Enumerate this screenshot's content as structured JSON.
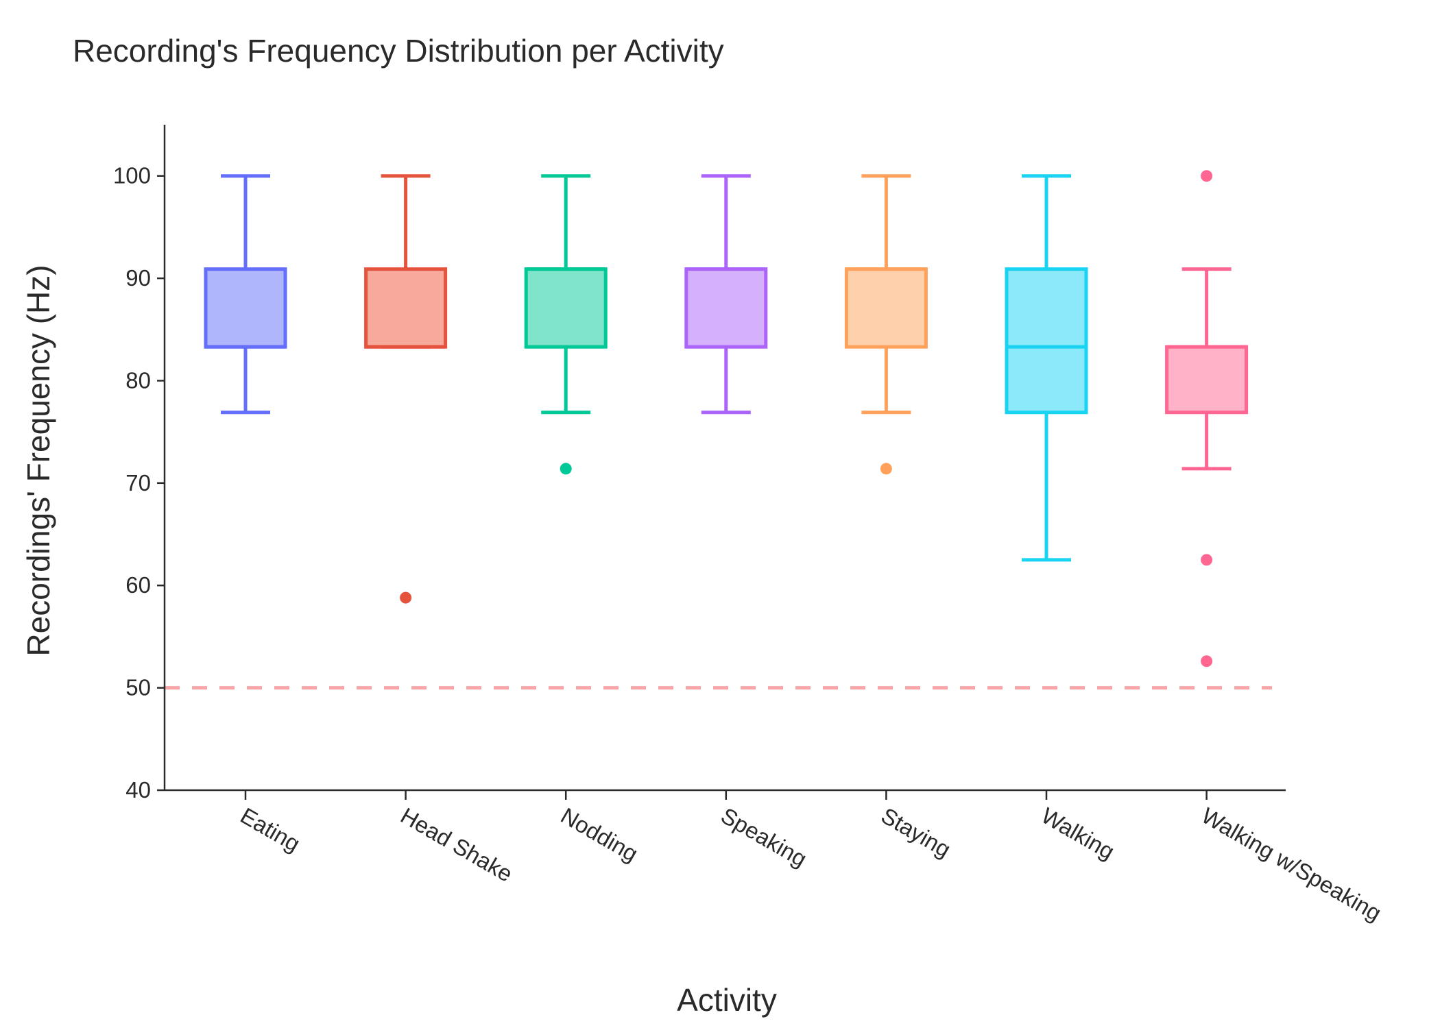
{
  "chart_data": {
    "type": "box",
    "title": "Recording's Frequency Distribution per Activity",
    "xlabel": "Activity",
    "ylabel": "Recordings' Frequency (Hz)",
    "ylim": [
      40,
      105
    ],
    "yticks": [
      40,
      50,
      60,
      70,
      80,
      90,
      100
    ],
    "grid": false,
    "reference_line": {
      "y": 50,
      "style": "dashed",
      "color": "#f8a5a8"
    },
    "categories": [
      "Eating",
      "Head Shake",
      "Nodding",
      "Speaking",
      "Staying",
      "Walking",
      "Walking w/Speaking"
    ],
    "boxes": [
      {
        "name": "Eating",
        "color": "#636efa",
        "fill": "#b0b6fc",
        "whisker_low": 76.9,
        "q1": 83.3,
        "median": 83.3,
        "q3": 90.9,
        "whisker_high": 100,
        "outliers": []
      },
      {
        "name": "Head Shake",
        "color": "#e5533d",
        "fill": "#f7aa9c",
        "whisker_low": 83.3,
        "q1": 83.3,
        "median": 83.3,
        "q3": 90.9,
        "whisker_high": 100,
        "outliers": [
          58.8
        ]
      },
      {
        "name": "Nodding",
        "color": "#00c896",
        "fill": "#7fe4ca",
        "whisker_low": 76.9,
        "q1": 83.3,
        "median": 90.9,
        "q3": 90.9,
        "whisker_high": 100,
        "outliers": [
          71.4
        ]
      },
      {
        "name": "Speaking",
        "color": "#ab63fa",
        "fill": "#d5b1fc",
        "whisker_low": 76.9,
        "q1": 83.3,
        "median": 90.9,
        "q3": 90.9,
        "whisker_high": 100,
        "outliers": []
      },
      {
        "name": "Staying",
        "color": "#ffa15a",
        "fill": "#ffd0ac",
        "whisker_low": 76.9,
        "q1": 83.3,
        "median": 90.9,
        "q3": 90.9,
        "whisker_high": 100,
        "outliers": [
          71.4
        ]
      },
      {
        "name": "Walking",
        "color": "#19d3f3",
        "fill": "#8ce9f9",
        "whisker_low": 62.5,
        "q1": 76.9,
        "median": 83.3,
        "q3": 90.9,
        "whisker_high": 100,
        "outliers": []
      },
      {
        "name": "Walking w/Speaking",
        "color": "#ff6692",
        "fill": "#ffb2c8",
        "whisker_low": 71.4,
        "q1": 76.9,
        "median": 83.3,
        "q3": 83.3,
        "whisker_high": 90.9,
        "outliers": [
          100,
          62.5,
          52.6
        ]
      }
    ]
  }
}
